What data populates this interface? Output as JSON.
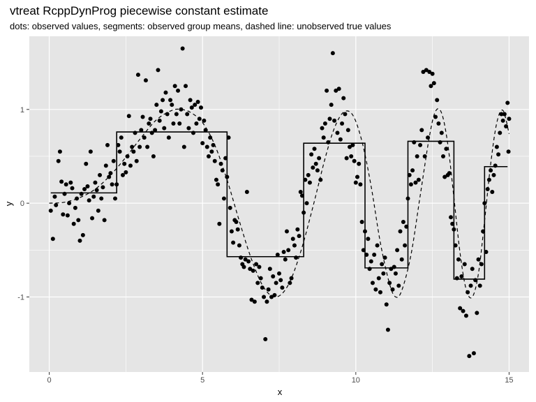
{
  "chart_data": {
    "type": "scatter",
    "title": "vtreat RcppDynProg piecewise constant estimate",
    "subtitle": "dots: observed values, segments: observed group means, dashed line: unobserved true values",
    "xlabel": "x",
    "ylabel": "y",
    "xlim": [
      -0.65,
      15.65
    ],
    "ylim": [
      -1.8,
      1.78
    ],
    "x_ticks": [
      0,
      5,
      10,
      15
    ],
    "y_ticks": [
      -1,
      0,
      1
    ],
    "x_tick_labels": [
      "0",
      "5",
      "10",
      "15"
    ],
    "y_tick_labels": [
      "-1",
      "0",
      "1"
    ],
    "grid": true,
    "panel_background": "#e5e5e5",
    "grid_color": "#ffffff",
    "point_color": "#000000",
    "true_curve_style": "dashed",
    "segments": [
      {
        "x0": 0.05,
        "x1": 2.2,
        "y": 0.11
      },
      {
        "x0": 2.2,
        "x1": 5.8,
        "y": 0.76
      },
      {
        "x0": 5.8,
        "x1": 8.3,
        "y": -0.57
      },
      {
        "x0": 8.3,
        "x1": 10.3,
        "y": 0.64
      },
      {
        "x0": 10.3,
        "x1": 11.7,
        "y": -0.69
      },
      {
        "x0": 11.7,
        "x1": 13.2,
        "y": 0.66
      },
      {
        "x0": 13.2,
        "x1": 14.2,
        "y": -0.81
      },
      {
        "x0": 14.2,
        "x1": 14.95,
        "y": 0.39
      }
    ],
    "true_curve": [
      {
        "x": 0.0,
        "y": 0.0
      },
      {
        "x": 0.5,
        "y": 0.01
      },
      {
        "x": 1.0,
        "y": 0.06
      },
      {
        "x": 1.5,
        "y": 0.15
      },
      {
        "x": 2.0,
        "y": 0.3
      },
      {
        "x": 2.5,
        "y": 0.49
      },
      {
        "x": 3.0,
        "y": 0.7
      },
      {
        "x": 3.5,
        "y": 0.89
      },
      {
        "x": 4.0,
        "y": 0.99
      },
      {
        "x": 4.3,
        "y": 1.0
      },
      {
        "x": 4.6,
        "y": 0.97
      },
      {
        "x": 5.0,
        "y": 0.86
      },
      {
        "x": 5.4,
        "y": 0.62
      },
      {
        "x": 5.8,
        "y": 0.25
      },
      {
        "x": 6.2,
        "y": -0.19
      },
      {
        "x": 6.6,
        "y": -0.6
      },
      {
        "x": 7.0,
        "y": -0.9
      },
      {
        "x": 7.4,
        "y": -1.0
      },
      {
        "x": 7.8,
        "y": -0.87
      },
      {
        "x": 8.2,
        "y": -0.52
      },
      {
        "x": 8.6,
        "y": -0.04
      },
      {
        "x": 9.0,
        "y": 0.48
      },
      {
        "x": 9.3,
        "y": 0.8
      },
      {
        "x": 9.6,
        "y": 0.97
      },
      {
        "x": 9.9,
        "y": 0.94
      },
      {
        "x": 10.2,
        "y": 0.66
      },
      {
        "x": 10.5,
        "y": 0.18
      },
      {
        "x": 10.8,
        "y": -0.42
      },
      {
        "x": 11.1,
        "y": -0.86
      },
      {
        "x": 11.3,
        "y": -1.0
      },
      {
        "x": 11.5,
        "y": -0.93
      },
      {
        "x": 11.8,
        "y": -0.55
      },
      {
        "x": 12.1,
        "y": 0.08
      },
      {
        "x": 12.4,
        "y": 0.71
      },
      {
        "x": 12.6,
        "y": 0.98
      },
      {
        "x": 12.8,
        "y": 0.96
      },
      {
        "x": 13.0,
        "y": 0.63
      },
      {
        "x": 13.2,
        "y": 0.06
      },
      {
        "x": 13.4,
        "y": -0.53
      },
      {
        "x": 13.6,
        "y": -0.92
      },
      {
        "x": 13.8,
        "y": -1.0
      },
      {
        "x": 14.0,
        "y": -0.75
      },
      {
        "x": 14.2,
        "y": -0.19
      },
      {
        "x": 14.4,
        "y": 0.42
      },
      {
        "x": 14.6,
        "y": 0.86
      },
      {
        "x": 14.8,
        "y": 0.99
      },
      {
        "x": 15.0,
        "y": 0.74
      }
    ],
    "points": [
      [
        0.05,
        -0.08
      ],
      [
        0.12,
        -0.38
      ],
      [
        0.18,
        0.07
      ],
      [
        0.22,
        -0.02
      ],
      [
        0.3,
        0.45
      ],
      [
        0.35,
        0.55
      ],
      [
        0.4,
        0.23
      ],
      [
        0.45,
        -0.12
      ],
      [
        0.5,
        0.1
      ],
      [
        0.55,
        0.2
      ],
      [
        0.6,
        -0.13
      ],
      [
        0.65,
        0.0
      ],
      [
        0.7,
        0.22
      ],
      [
        0.75,
        0.16
      ],
      [
        0.8,
        -0.22
      ],
      [
        0.85,
        -0.05
      ],
      [
        0.9,
        0.05
      ],
      [
        0.95,
        -0.18
      ],
      [
        1.0,
        -0.4
      ],
      [
        1.05,
        0.1
      ],
      [
        1.1,
        -0.34
      ],
      [
        1.15,
        0.15
      ],
      [
        1.2,
        0.42
      ],
      [
        1.25,
        0.18
      ],
      [
        1.3,
        0.03
      ],
      [
        1.35,
        0.55
      ],
      [
        1.4,
        -0.16
      ],
      [
        1.45,
        0.07
      ],
      [
        1.5,
        0.22
      ],
      [
        1.55,
        0.14
      ],
      [
        1.6,
        -0.08
      ],
      [
        1.65,
        0.3
      ],
      [
        1.7,
        0.05
      ],
      [
        1.75,
        0.17
      ],
      [
        1.8,
        -0.18
      ],
      [
        1.85,
        0.4
      ],
      [
        1.9,
        0.62
      ],
      [
        1.95,
        0.28
      ],
      [
        2.0,
        0.32
      ],
      [
        2.05,
        0.2
      ],
      [
        2.1,
        0.45
      ],
      [
        2.15,
        0.05
      ],
      [
        2.2,
        0.2
      ],
      [
        2.25,
        0.62
      ],
      [
        2.3,
        0.55
      ],
      [
        2.35,
        0.7
      ],
      [
        2.4,
        0.3
      ],
      [
        2.45,
        0.42
      ],
      [
        2.5,
        0.33
      ],
      [
        2.55,
        0.5
      ],
      [
        2.6,
        0.93
      ],
      [
        2.65,
        0.4
      ],
      [
        2.7,
        0.6
      ],
      [
        2.75,
        0.55
      ],
      [
        2.8,
        0.75
      ],
      [
        2.85,
        0.45
      ],
      [
        2.9,
        1.37
      ],
      [
        2.95,
        0.6
      ],
      [
        3.0,
        0.78
      ],
      [
        3.05,
        0.92
      ],
      [
        3.1,
        0.7
      ],
      [
        3.15,
        1.31
      ],
      [
        3.2,
        0.6
      ],
      [
        3.25,
        0.85
      ],
      [
        3.3,
        0.9
      ],
      [
        3.35,
        0.75
      ],
      [
        3.4,
        0.5
      ],
      [
        3.45,
        0.78
      ],
      [
        3.5,
        1.05
      ],
      [
        3.55,
        1.42
      ],
      [
        3.6,
        0.88
      ],
      [
        3.65,
        0.98
      ],
      [
        3.7,
        1.1
      ],
      [
        3.75,
        0.8
      ],
      [
        3.8,
        1.18
      ],
      [
        3.85,
        0.95
      ],
      [
        3.9,
        0.7
      ],
      [
        3.95,
        1.1
      ],
      [
        4.0,
        1.05
      ],
      [
        4.05,
        0.85
      ],
      [
        4.1,
        1.25
      ],
      [
        4.15,
        0.95
      ],
      [
        4.2,
        1.2
      ],
      [
        4.25,
        0.85
      ],
      [
        4.3,
        1.0
      ],
      [
        4.35,
        1.65
      ],
      [
        4.4,
        0.6
      ],
      [
        4.45,
        1.25
      ],
      [
        4.5,
        0.95
      ],
      [
        4.55,
        0.8
      ],
      [
        4.6,
        1.1
      ],
      [
        4.65,
        1.02
      ],
      [
        4.7,
        0.75
      ],
      [
        4.75,
        1.05
      ],
      [
        4.8,
        0.85
      ],
      [
        4.85,
        1.08
      ],
      [
        4.9,
        0.9
      ],
      [
        4.95,
        1.02
      ],
      [
        5.0,
        0.64
      ],
      [
        5.05,
        0.88
      ],
      [
        5.1,
        0.78
      ],
      [
        5.15,
        0.6
      ],
      [
        5.2,
        0.5
      ],
      [
        5.25,
        0.7
      ],
      [
        5.3,
        0.55
      ],
      [
        5.35,
        0.62
      ],
      [
        5.4,
        0.45
      ],
      [
        5.45,
        0.25
      ],
      [
        5.5,
        0.2
      ],
      [
        5.55,
        -0.22
      ],
      [
        5.6,
        0.42
      ],
      [
        5.65,
        0.35
      ],
      [
        5.7,
        0.05
      ],
      [
        5.75,
        0.48
      ],
      [
        5.8,
        0.28
      ],
      [
        5.85,
        0.7
      ],
      [
        5.9,
        -0.05
      ],
      [
        5.95,
        -0.3
      ],
      [
        6.0,
        -0.42
      ],
      [
        6.05,
        -0.18
      ],
      [
        6.1,
        -0.2
      ],
      [
        6.15,
        -0.28
      ],
      [
        6.2,
        -0.45
      ],
      [
        6.25,
        -0.58
      ],
      [
        6.3,
        -0.65
      ],
      [
        6.35,
        -0.68
      ],
      [
        6.4,
        -0.6
      ],
      [
        6.45,
        0.12
      ],
      [
        6.5,
        -0.62
      ],
      [
        6.55,
        -0.7
      ],
      [
        6.6,
        -1.03
      ],
      [
        6.65,
        -0.72
      ],
      [
        6.7,
        -1.05
      ],
      [
        6.75,
        -0.65
      ],
      [
        6.8,
        -0.85
      ],
      [
        6.85,
        -0.68
      ],
      [
        6.9,
        -0.8
      ],
      [
        6.95,
        -0.9
      ],
      [
        7.0,
        -1.0
      ],
      [
        7.05,
        -1.45
      ],
      [
        7.1,
        -1.05
      ],
      [
        7.15,
        -0.92
      ],
      [
        7.2,
        -0.7
      ],
      [
        7.25,
        -1.0
      ],
      [
        7.3,
        -0.78
      ],
      [
        7.35,
        -0.98
      ],
      [
        7.4,
        -0.85
      ],
      [
        7.45,
        -0.55
      ],
      [
        7.5,
        -0.75
      ],
      [
        7.55,
        -0.82
      ],
      [
        7.6,
        -0.9
      ],
      [
        7.65,
        -0.52
      ],
      [
        7.7,
        -0.6
      ],
      [
        7.75,
        -0.3
      ],
      [
        7.8,
        -0.5
      ],
      [
        7.85,
        -0.85
      ],
      [
        7.9,
        -0.8
      ],
      [
        7.95,
        -0.38
      ],
      [
        8.0,
        -0.45
      ],
      [
        8.05,
        -0.58
      ],
      [
        8.1,
        -0.28
      ],
      [
        8.15,
        -0.35
      ],
      [
        8.2,
        0.12
      ],
      [
        8.25,
        0.08
      ],
      [
        8.3,
        -0.1
      ],
      [
        8.35,
        0.25
      ],
      [
        8.4,
        0.0
      ],
      [
        8.45,
        0.3
      ],
      [
        8.5,
        0.22
      ],
      [
        8.55,
        0.52
      ],
      [
        8.6,
        0.38
      ],
      [
        8.65,
        0.58
      ],
      [
        8.7,
        0.42
      ],
      [
        8.75,
        0.35
      ],
      [
        8.8,
        0.48
      ],
      [
        8.85,
        0.25
      ],
      [
        8.9,
        0.8
      ],
      [
        8.95,
        0.7
      ],
      [
        9.0,
        0.85
      ],
      [
        9.05,
        1.2
      ],
      [
        9.1,
        0.65
      ],
      [
        9.15,
        0.9
      ],
      [
        9.2,
        1.05
      ],
      [
        9.25,
        1.6
      ],
      [
        9.3,
        0.88
      ],
      [
        9.35,
        1.2
      ],
      [
        9.4,
        0.75
      ],
      [
        9.45,
        1.22
      ],
      [
        9.5,
        0.68
      ],
      [
        9.55,
        0.85
      ],
      [
        9.6,
        1.12
      ],
      [
        9.65,
        0.95
      ],
      [
        9.7,
        0.48
      ],
      [
        9.75,
        0.78
      ],
      [
        9.8,
        0.6
      ],
      [
        9.85,
        0.5
      ],
      [
        9.9,
        0.62
      ],
      [
        9.95,
        0.45
      ],
      [
        10.0,
        0.22
      ],
      [
        10.05,
        0.28
      ],
      [
        10.1,
        0.42
      ],
      [
        10.15,
        0.2
      ],
      [
        10.2,
        -0.2
      ],
      [
        10.25,
        -0.5
      ],
      [
        10.3,
        -0.3
      ],
      [
        10.35,
        -0.55
      ],
      [
        10.4,
        -0.38
      ],
      [
        10.45,
        -0.7
      ],
      [
        10.5,
        -0.62
      ],
      [
        10.55,
        -0.85
      ],
      [
        10.6,
        -0.55
      ],
      [
        10.65,
        -0.92
      ],
      [
        10.7,
        -0.45
      ],
      [
        10.75,
        -0.8
      ],
      [
        10.8,
        -0.95
      ],
      [
        10.85,
        -0.65
      ],
      [
        10.9,
        -0.75
      ],
      [
        10.95,
        -0.58
      ],
      [
        11.0,
        -1.08
      ],
      [
        11.05,
        -1.35
      ],
      [
        11.1,
        -0.85
      ],
      [
        11.15,
        -0.7
      ],
      [
        11.2,
        -0.92
      ],
      [
        11.25,
        -0.68
      ],
      [
        11.3,
        -0.75
      ],
      [
        11.35,
        -0.5
      ],
      [
        11.4,
        -0.88
      ],
      [
        11.45,
        -0.3
      ],
      [
        11.5,
        -0.6
      ],
      [
        11.55,
        -0.2
      ],
      [
        11.6,
        -0.45
      ],
      [
        11.65,
        -0.25
      ],
      [
        11.7,
        0.05
      ],
      [
        11.75,
        0.3
      ],
      [
        11.8,
        0.2
      ],
      [
        11.85,
        0.35
      ],
      [
        11.9,
        0.65
      ],
      [
        11.95,
        0.22
      ],
      [
        12.0,
        0.5
      ],
      [
        12.05,
        0.25
      ],
      [
        12.1,
        0.62
      ],
      [
        12.15,
        0.78
      ],
      [
        12.2,
        1.4
      ],
      [
        12.25,
        0.5
      ],
      [
        12.3,
        1.42
      ],
      [
        12.35,
        0.7
      ],
      [
        12.4,
        1.4
      ],
      [
        12.45,
        1.25
      ],
      [
        12.5,
        1.38
      ],
      [
        12.55,
        1.28
      ],
      [
        12.6,
        0.92
      ],
      [
        12.65,
        1.1
      ],
      [
        12.7,
        0.85
      ],
      [
        12.75,
        0.65
      ],
      [
        12.8,
        0.75
      ],
      [
        12.85,
        0.5
      ],
      [
        12.9,
        0.28
      ],
      [
        12.95,
        0.58
      ],
      [
        13.0,
        0.3
      ],
      [
        13.05,
        0.32
      ],
      [
        13.1,
        -0.15
      ],
      [
        13.15,
        -0.22
      ],
      [
        13.2,
        -0.28
      ],
      [
        13.25,
        -0.45
      ],
      [
        13.3,
        -0.8
      ],
      [
        13.35,
        -0.6
      ],
      [
        13.4,
        -1.12
      ],
      [
        13.45,
        -0.78
      ],
      [
        13.5,
        -1.15
      ],
      [
        13.55,
        -0.65
      ],
      [
        13.6,
        -1.2
      ],
      [
        13.65,
        -0.95
      ],
      [
        13.7,
        -1.63
      ],
      [
        13.75,
        -0.88
      ],
      [
        13.8,
        -0.7
      ],
      [
        13.85,
        -1.6
      ],
      [
        13.9,
        -0.82
      ],
      [
        13.95,
        -1.17
      ],
      [
        14.0,
        -0.6
      ],
      [
        14.05,
        -0.88
      ],
      [
        14.1,
        -0.65
      ],
      [
        14.15,
        -0.3
      ],
      [
        14.2,
        0.0
      ],
      [
        14.25,
        -0.52
      ],
      [
        14.3,
        0.15
      ],
      [
        14.35,
        0.25
      ],
      [
        14.4,
        0.35
      ],
      [
        14.45,
        0.12
      ],
      [
        14.5,
        0.3
      ],
      [
        14.55,
        0.4
      ],
      [
        14.6,
        0.6
      ],
      [
        14.65,
        0.52
      ],
      [
        14.7,
        0.75
      ],
      [
        14.75,
        0.95
      ],
      [
        14.8,
        0.88
      ],
      [
        14.85,
        0.95
      ],
      [
        14.9,
        0.82
      ],
      [
        14.95,
        1.07
      ],
      [
        15.0,
        0.9
      ],
      [
        14.98,
        0.55
      ]
    ]
  }
}
